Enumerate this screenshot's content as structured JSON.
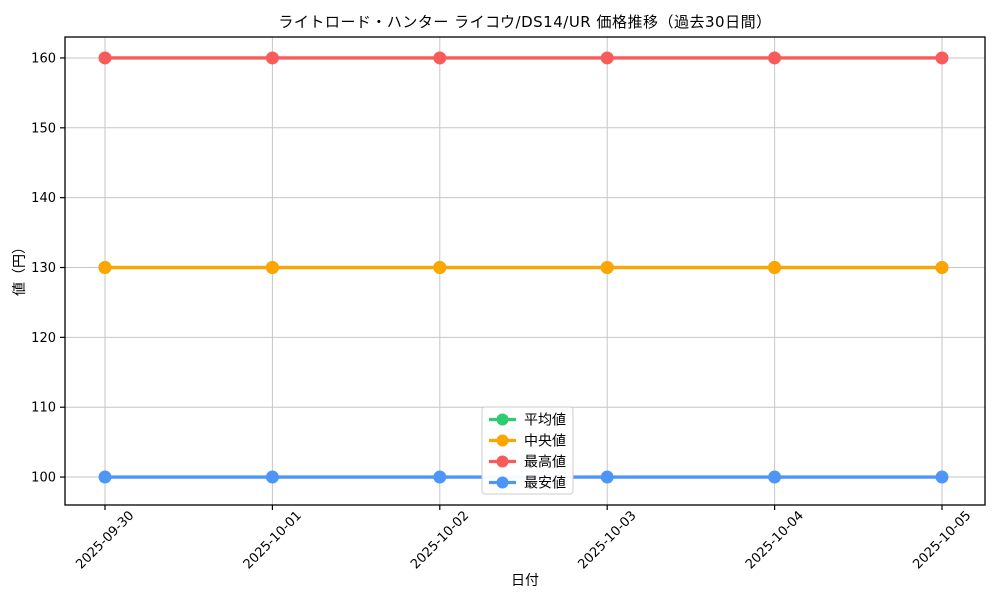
{
  "chart_data": {
    "type": "line",
    "title": "ライトロード・ハンター ライコウ/DS14/UR 価格推移（過去30日間）",
    "xlabel": "日付",
    "ylabel": "値（円）",
    "categories": [
      "2025-09-30",
      "2025-10-01",
      "2025-10-02",
      "2025-10-03",
      "2025-10-04",
      "2025-10-05"
    ],
    "series": [
      {
        "name": "平均値",
        "color": "#2ECC71",
        "values": [
          130,
          130,
          130,
          130,
          130,
          130
        ],
        "note": "line coincides with 中央値 and is hidden beneath it"
      },
      {
        "name": "中央値",
        "color": "#FFA500",
        "values": [
          130,
          130,
          130,
          130,
          130,
          130
        ]
      },
      {
        "name": "最高値",
        "color": "#F95B5B",
        "values": [
          160,
          160,
          160,
          160,
          160,
          160
        ]
      },
      {
        "name": "最安値",
        "color": "#4D96F8",
        "values": [
          100,
          100,
          100,
          100,
          100,
          100
        ]
      }
    ],
    "ylim": [
      96,
      163
    ],
    "yticks": [
      100,
      110,
      120,
      130,
      140,
      150,
      160
    ],
    "grid": true,
    "grid_color": "#c6c6c6",
    "xtick_rotation": 45,
    "marker": "circle",
    "legend": {
      "labels": [
        "平均値",
        "中央値",
        "最高値",
        "最安値"
      ],
      "position": "lower-center-inside",
      "border_color": "#cccccc",
      "background": "#ffffff"
    }
  }
}
